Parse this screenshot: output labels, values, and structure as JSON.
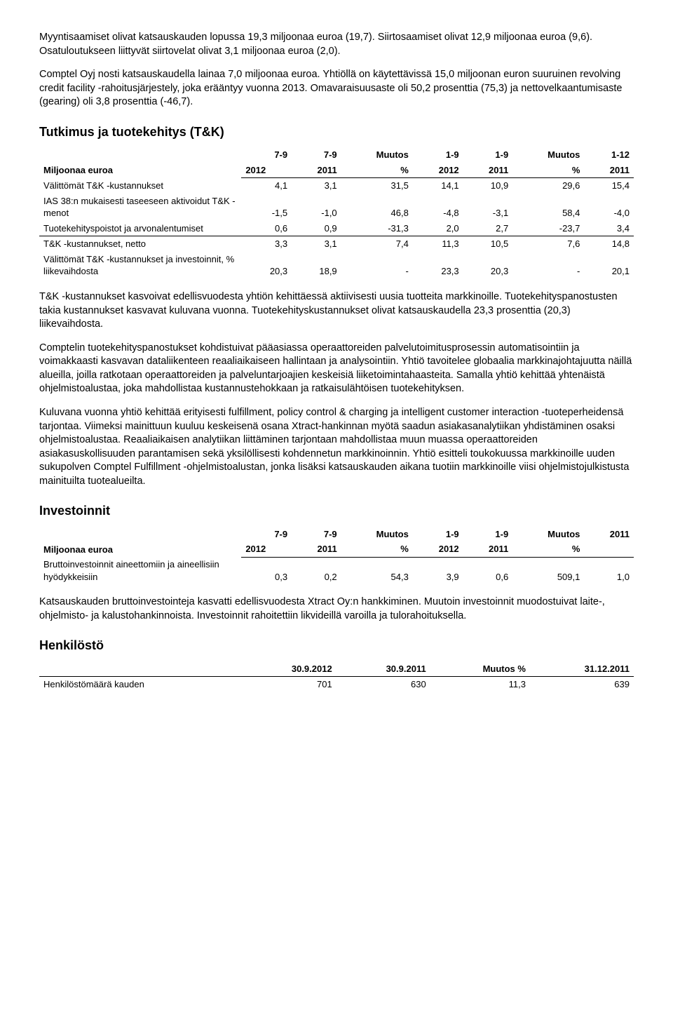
{
  "para1": "Myyntisaamiset olivat katsauskauden lopussa 19,3 miljoonaa euroa (19,7). Siirtosaamiset olivat 12,9 miljoonaa euroa (9,6). Osatuloutukseen liittyvät siirtovelat olivat 3,1 miljoonaa euroa (2,0).",
  "para2": "Comptel Oyj nosti katsauskaudella lainaa 7,0 miljoonaa euroa. Yhtiöllä on käytettävissä 15,0 miljoonan euron suuruinen revolving credit facility -rahoitusjärjestely, joka erääntyy vuonna 2013. Omavaraisuusaste oli 50,2 prosenttia (75,3) ja nettovelkaantumisaste (gearing) oli 3,8 prosenttia (-46,7).",
  "tk_heading": "Tutkimus ja tuotekehitys (T&K)",
  "tk_table": {
    "header_label": "Miljoonaa euroa",
    "cols_top": [
      "7-9",
      "7-9",
      "Muutos",
      "1-9",
      "1-9",
      "Muutos",
      "1-12"
    ],
    "cols_bot": [
      "2012",
      "2011",
      "%",
      "2012",
      "2011",
      "%",
      "2011"
    ],
    "rows": [
      {
        "label": "Välittömät T&K -kustannukset",
        "v": [
          "4,1",
          "3,1",
          "31,5",
          "14,1",
          "10,9",
          "29,6",
          "15,4"
        ]
      },
      {
        "label": "IAS 38:n mukaisesti taseeseen aktivoidut T&K -menot",
        "v": [
          "-1,5",
          "-1,0",
          "46,8",
          "-4,8",
          "-3,1",
          "58,4",
          "-4,0"
        ]
      },
      {
        "label": "Tuotekehityspoistot ja arvonalentumiset",
        "v": [
          "0,6",
          "0,9",
          "-31,3",
          "2,0",
          "2,7",
          "-23,7",
          "3,4"
        ]
      },
      {
        "label": "T&K -kustannukset, netto",
        "v": [
          "3,3",
          "3,1",
          "7,4",
          "11,3",
          "10,5",
          "7,6",
          "14,8"
        ],
        "sep": true
      },
      {
        "label": "Välittömät T&K -kustannukset ja investoinnit, % liikevaihdosta",
        "v": [
          "20,3",
          "18,9",
          "-",
          "23,3",
          "20,3",
          "-",
          "20,1"
        ]
      }
    ]
  },
  "para3": "T&K -kustannukset kasvoivat edellisvuodesta yhtiön kehittäessä aktiivisesti uusia tuotteita markkinoille. Tuotekehityspanostusten takia kustannukset kasvavat kuluvana vuonna. Tuotekehityskustannukset olivat katsauskaudella 23,3 prosenttia (20,3) liikevaihdosta.",
  "para4": "Comptelin tuotekehityspanostukset kohdistuivat pääasiassa operaattoreiden palvelutoimitusprosessin automatisointiin ja voimakkaasti kasvavan dataliikenteen reaaliaikaiseen hallintaan ja analysointiin. Yhtiö tavoitelee globaalia markkinajohtajuutta näillä alueilla, joilla ratkotaan operaattoreiden ja palveluntarjoajien keskeisiä liiketoimintahaasteita. Samalla yhtiö kehittää yhtenäistä ohjelmistoalustaa, joka mahdollistaa kustannustehokkaan ja ratkaisulähtöisen tuotekehityksen.",
  "para5": "Kuluvana vuonna yhtiö kehittää erityisesti fulfillment, policy control & charging ja intelligent customer interaction -tuoteperheidensä tarjontaa. Viimeksi mainittuun kuuluu keskeisenä osana Xtract-hankinnan myötä saadun asiakasanalytiikan yhdistäminen osaksi ohjelmistoalustaa. Reaaliaikaisen analytiikan liittäminen tarjontaan mahdollistaa muun muassa operaattoreiden asiakasuskollisuuden parantamisen sekä yksilöllisesti kohdennetun markkinoinnin. Yhtiö esitteli toukokuussa markkinoille uuden sukupolven Comptel Fulfillment -ohjelmistoalustan, jonka lisäksi katsauskauden aikana tuotiin markkinoille viisi ohjelmistojulkistusta mainituilta tuotealueilta.",
  "inv_heading": "Investoinnit",
  "inv_table": {
    "header_label": "Miljoonaa euroa",
    "cols_top": [
      "7-9",
      "7-9",
      "Muutos",
      "1-9",
      "1-9",
      "Muutos",
      "2011"
    ],
    "cols_bot": [
      "2012",
      "2011",
      "%",
      "2012",
      "2011",
      "%",
      ""
    ],
    "rows": [
      {
        "label": "Bruttoinvestoinnit aineettomiin ja aineellisiin hyödykkeisiin",
        "v": [
          "0,3",
          "0,2",
          "54,3",
          "3,9",
          "0,6",
          "509,1",
          "1,0"
        ]
      }
    ]
  },
  "para6": "Katsauskauden bruttoinvestointeja kasvatti edellisvuodesta Xtract Oy:n hankkiminen. Muutoin investoinnit muodostuivat laite-, ohjelmisto- ja kalustohankinnoista. Investoinnit rahoitettiin likvideillä varoilla ja tulorahoituksella.",
  "hen_heading": "Henkilöstö",
  "hen_table": {
    "cols": [
      "30.9.2012",
      "30.9.2011",
      "Muutos %",
      "31.12.2011"
    ],
    "row_label": "Henkilöstömäärä kauden",
    "row_vals": [
      "701",
      "630",
      "11,3",
      "639"
    ]
  }
}
